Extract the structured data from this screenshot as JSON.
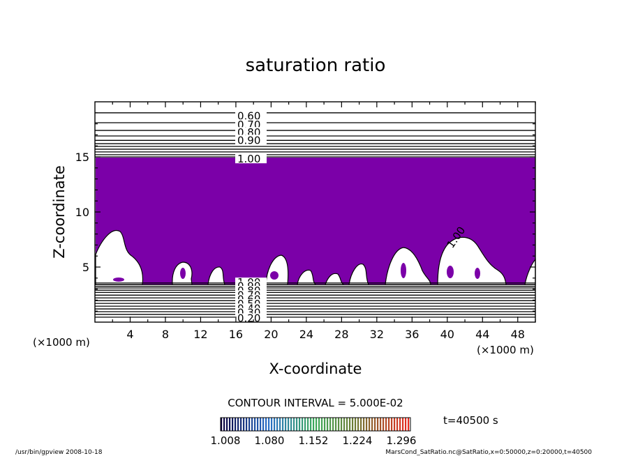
{
  "chart_data": {
    "type": "contour",
    "title": "saturation ratio",
    "xlabel": "X-coordinate",
    "ylabel": "Z-coordinate",
    "x_unit": "(×1000 m)",
    "y_unit": "(×1000 m)",
    "xlim": [
      0,
      50
    ],
    "ylim": [
      0,
      20
    ],
    "x_ticks": [
      "4",
      "8",
      "12",
      "16",
      "20",
      "24",
      "28",
      "32",
      "36",
      "40",
      "44",
      "48"
    ],
    "y_ticks": [
      "5",
      "10",
      "15"
    ],
    "upper_contour_labels": [
      "0.60",
      "0.70",
      "0.80",
      "0.90",
      "1.00"
    ],
    "lower_contour_labels": [
      "1.00",
      "0.90",
      "0.80",
      "0.70",
      "0.60",
      "0.50",
      "0.40",
      "0.30",
      "0.20"
    ],
    "mid_contour_label": "1.00",
    "contour_interval": "CONTOUR INTERVAL = 5.000E-02",
    "colorbar_ticks": [
      "1.008",
      "1.080",
      "1.152",
      "1.224",
      "1.296"
    ],
    "time_label": "t=40500 s",
    "fill_color": "#7b00a8",
    "footer_left": "/usr/bin/gpview   2008-10-18",
    "footer_right": "MarsCond_SatRatio.nc@SatRatio,x=0:50000,z=0:20000,t=40500"
  }
}
